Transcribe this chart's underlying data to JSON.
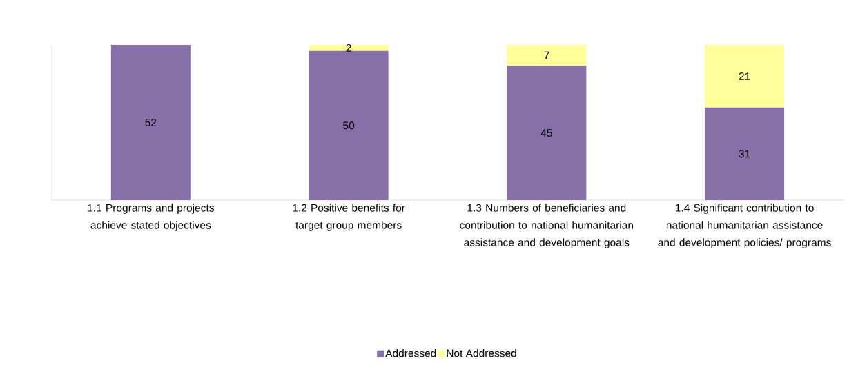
{
  "chart_data": {
    "type": "bar",
    "stacked": true,
    "categories": [
      "1.1 Programs and projects achieve stated objectives",
      "1.2 Positive benefits for target group members",
      "1.3 Numbers of beneficiaries and contribution to national humanitarian assistance and development goals",
      "1.4 Significant contribution to national humanitarian assistance and development policies/ programs"
    ],
    "series": [
      {
        "name": "Addressed",
        "color": "#8770aa",
        "values": [
          52,
          50,
          45,
          31
        ],
        "value_labels": [
          "52",
          "50",
          "45",
          "31"
        ]
      },
      {
        "name": "Not Addressed",
        "color": "#ffff99",
        "values": [
          0,
          2,
          7,
          21
        ],
        "value_labels": [
          null,
          "2",
          "7",
          "21"
        ]
      }
    ],
    "ylim": [
      0,
      52
    ],
    "legend": "bottom"
  }
}
